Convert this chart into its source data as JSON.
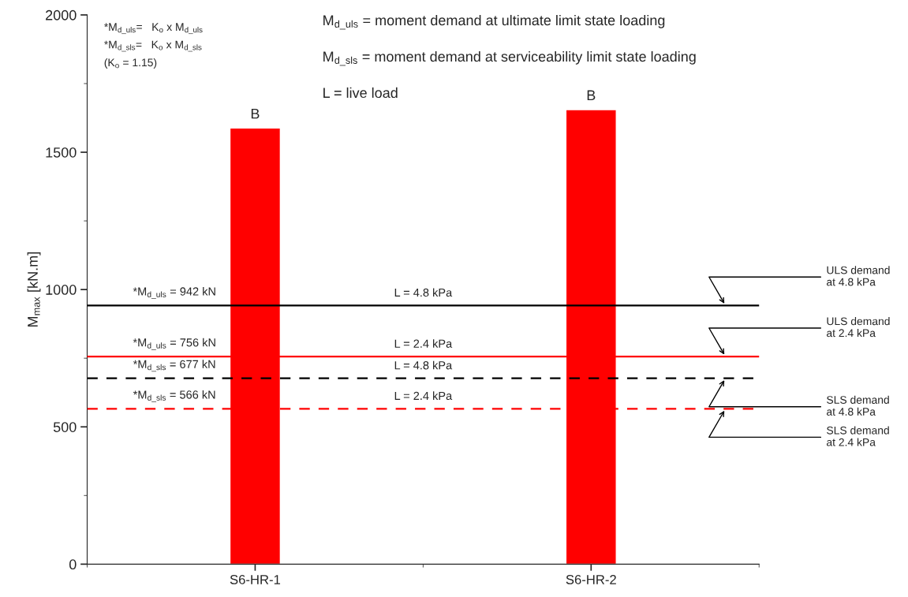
{
  "chart_data": {
    "type": "bar",
    "categories": [
      "S6-HR-1",
      "S6-HR-2"
    ],
    "values": [
      1588,
      1655
    ],
    "color": "#ff0000",
    "value_labels": [
      "B",
      "B"
    ],
    "ylabel": "M$_{max}$ [kN.m]",
    "ylim": [
      0,
      2000
    ],
    "yticks": [
      0,
      500,
      1000,
      1500,
      2000
    ],
    "grid": false,
    "ref_lines": [
      {
        "axis": "y",
        "value": 942,
        "label": "ULS demand\nat 4.8 kPa",
        "color": "#000000",
        "line_style": "solid"
      },
      {
        "axis": "y",
        "value": 756,
        "label": "ULS demand\nat 2.4 kPa",
        "color": "#ff0000",
        "line_style": "solid"
      },
      {
        "axis": "y",
        "value": 677,
        "label": "SLS demand\nat 4.8 kPa",
        "color": "#000000",
        "line_style": "dashed"
      },
      {
        "axis": "y",
        "value": 566,
        "label": "SLS demand\nat 2.4 kPa",
        "color": "#ff0000",
        "line_style": "dashed"
      }
    ],
    "annotations": [
      "*M$_{d_uls}$=   K$_{o}$ x M$_{d_uls}$",
      "*M$_{d_sls}$=   K$_{o}$ x M$_{d_sls}$",
      "(K$_{o}$ = 1.15)",
      "M$_{d_uls}$ = moment demand at ultimate limit state loading",
      "M$_{d_sls}$ = moment demand at serviceability limit state loading",
      "L = live load",
      {
        "text": "*M$_{d_uls}$ = 942 kN",
        "y": 942
      },
      {
        "text": "L = 4.8 kPa",
        "y": 942
      },
      {
        "text": "*M$_{d_uls}$ = 756 kN",
        "y": 756
      },
      {
        "text": "L = 2.4 kPa",
        "y": 756
      },
      {
        "text": "*M$_{d_sls}$ = 677 kN",
        "y": 677
      },
      {
        "text": "L = 4.8 kPa",
        "y": 677
      },
      {
        "text": "*M$_{d_sls}$ = 566 kN",
        "y": 566
      },
      {
        "text": "L = 2.4 kPa",
        "y": 566
      }
    ]
  }
}
